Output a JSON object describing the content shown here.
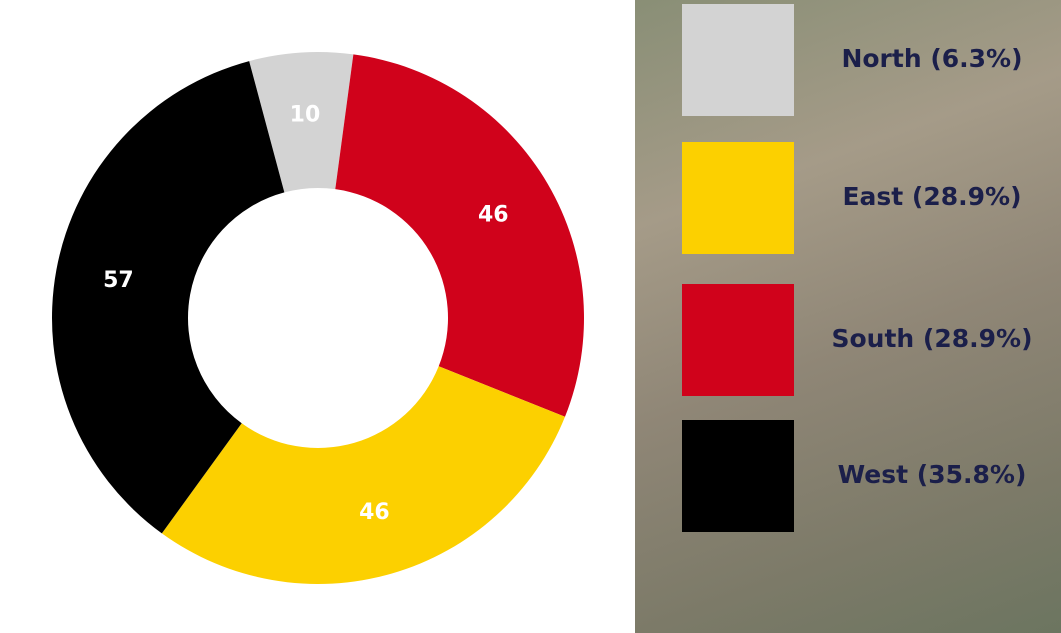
{
  "chart_data": {
    "type": "donut",
    "categories": [
      "North (6.3%)",
      "East (28.9%)",
      "South (28.9%)",
      "West (35.8%)"
    ],
    "values": [
      10,
      46,
      46,
      57
    ],
    "colors": [
      "#d3d3d3",
      "#fcd000",
      "#d0021b",
      "#000000"
    ]
  }
}
